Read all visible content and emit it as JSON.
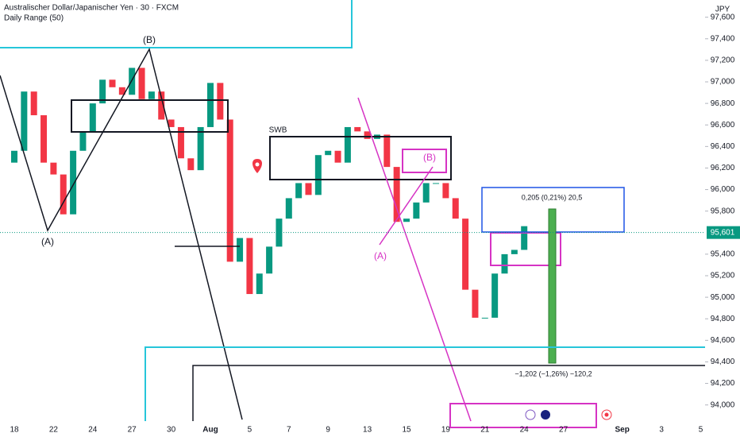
{
  "chart_data": {
    "type": "candlestick",
    "title": "Australischer Dollar/Japanischer Yen · 30 · FXCM",
    "subtitle": "Daily Range (50)",
    "currency": "JPY",
    "categories": [
      "18",
      null,
      "22",
      null,
      "24",
      null,
      "27",
      null,
      "30",
      null,
      "Aug",
      null,
      "5",
      null,
      "7",
      null,
      "9",
      null,
      "13",
      null,
      "15",
      null,
      "19",
      null,
      "21",
      null,
      "24",
      null,
      "27",
      null,
      null,
      "Sep",
      null,
      "3",
      null,
      "5"
    ],
    "x": [
      -0.5,
      0,
      0.5,
      1,
      1.5,
      2,
      2.5,
      3,
      3.5,
      4,
      4.5,
      5,
      5.5,
      6,
      6.5,
      7,
      7.5,
      8,
      8.5,
      9,
      9.5,
      10,
      10.5,
      11,
      11.5,
      12,
      12.5,
      13,
      13.5,
      14,
      14.5,
      15,
      15.5,
      16,
      16.5,
      17,
      17.5,
      18,
      18.5,
      19,
      19.5,
      20,
      20.5,
      21,
      21.5,
      22,
      22.5,
      23,
      23.5,
      24,
      24.5,
      25,
      25.5,
      26
    ],
    "values": [
      96250,
      96360,
      96910,
      96690,
      96250,
      96140,
      95770,
      96360,
      96540,
      96800,
      97020,
      96950,
      96880,
      97130,
      96840,
      96910,
      96650,
      96580,
      96290,
      96180,
      96580,
      96990,
      96650,
      95330,
      95550,
      95030,
      95220,
      95470,
      95730,
      95920,
      96060,
      95950,
      96320,
      96360,
      96250,
      96580,
      96540,
      96470,
      96510,
      96210,
      95700,
      95730,
      95880,
      96060,
      96060,
      95920,
      95730,
      95070,
      94810,
      94810,
      95220,
      95400,
      95440,
      95660
    ],
    "up_color": "#089981",
    "down_color": "#f23645",
    "ylim": [
      93850,
      97760
    ],
    "yticks": [
      {
        "value": 97600,
        "label": "97,600"
      },
      {
        "value": 97400,
        "label": "97,400"
      },
      {
        "value": 97200,
        "label": "97,200"
      },
      {
        "value": 97000,
        "label": "97,000"
      },
      {
        "value": 96800,
        "label": "96,800"
      },
      {
        "value": 96600,
        "label": "96,600"
      },
      {
        "value": 96400,
        "label": "96,400"
      },
      {
        "value": 96200,
        "label": "96,200"
      },
      {
        "value": 96000,
        "label": "96,000"
      },
      {
        "value": 95800,
        "label": "95,800"
      },
      {
        "value": 95400,
        "label": "95,400"
      },
      {
        "value": 95200,
        "label": "95,200"
      },
      {
        "value": 95000,
        "label": "95,000"
      },
      {
        "value": 94800,
        "label": "94,800"
      },
      {
        "value": 94600,
        "label": "94,600"
      },
      {
        "value": 94400,
        "label": "94,400"
      },
      {
        "value": 94200,
        "label": "94,200"
      },
      {
        "value": 94000,
        "label": "94,000"
      }
    ],
    "last_price": {
      "value": 95601,
      "label": "95,601"
    },
    "annotations": {
      "b_black": "(B)",
      "a_black": "(A)",
      "swb": "SWB",
      "b_magenta": "(B)",
      "a_magenta": "(A)",
      "measure_up": "0,205 (0,21%) 20,5",
      "measure_down": "−1,202 (−1,26%) −120,2"
    }
  }
}
